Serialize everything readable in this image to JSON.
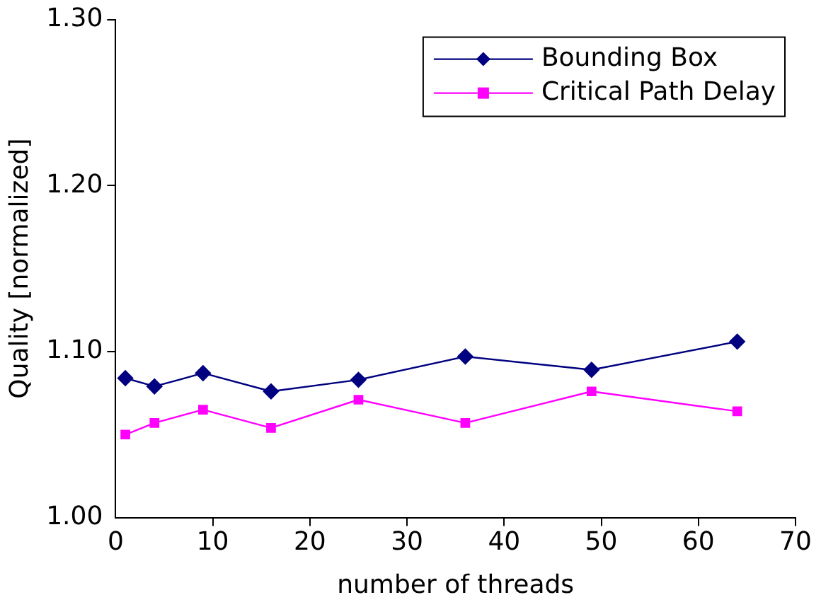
{
  "chart_data": {
    "type": "line",
    "xlabel": "number of threads",
    "ylabel": "Quality [normalized]",
    "x": [
      1,
      4,
      9,
      16,
      25,
      36,
      49,
      64
    ],
    "series": [
      {
        "name": "Bounding Box",
        "color": "#000080",
        "marker": "diamond",
        "values": [
          1.084,
          1.079,
          1.087,
          1.076,
          1.083,
          1.097,
          1.089,
          1.106
        ]
      },
      {
        "name": "Critical Path Delay",
        "color": "#ff00ff",
        "marker": "square",
        "values": [
          1.05,
          1.057,
          1.065,
          1.054,
          1.071,
          1.057,
          1.076,
          1.064
        ]
      }
    ],
    "xlim": [
      0,
      70
    ],
    "xticks": [
      0,
      10,
      20,
      30,
      40,
      50,
      60,
      70
    ],
    "ylim": [
      1.0,
      1.3
    ],
    "yticks": [
      {
        "value": 1.0,
        "label": "1.00"
      },
      {
        "value": 1.1,
        "label": "1.10"
      },
      {
        "value": 1.2,
        "label": "1.20"
      },
      {
        "value": 1.3,
        "label": "1.30"
      }
    ],
    "grid": false,
    "legend": "top right"
  }
}
